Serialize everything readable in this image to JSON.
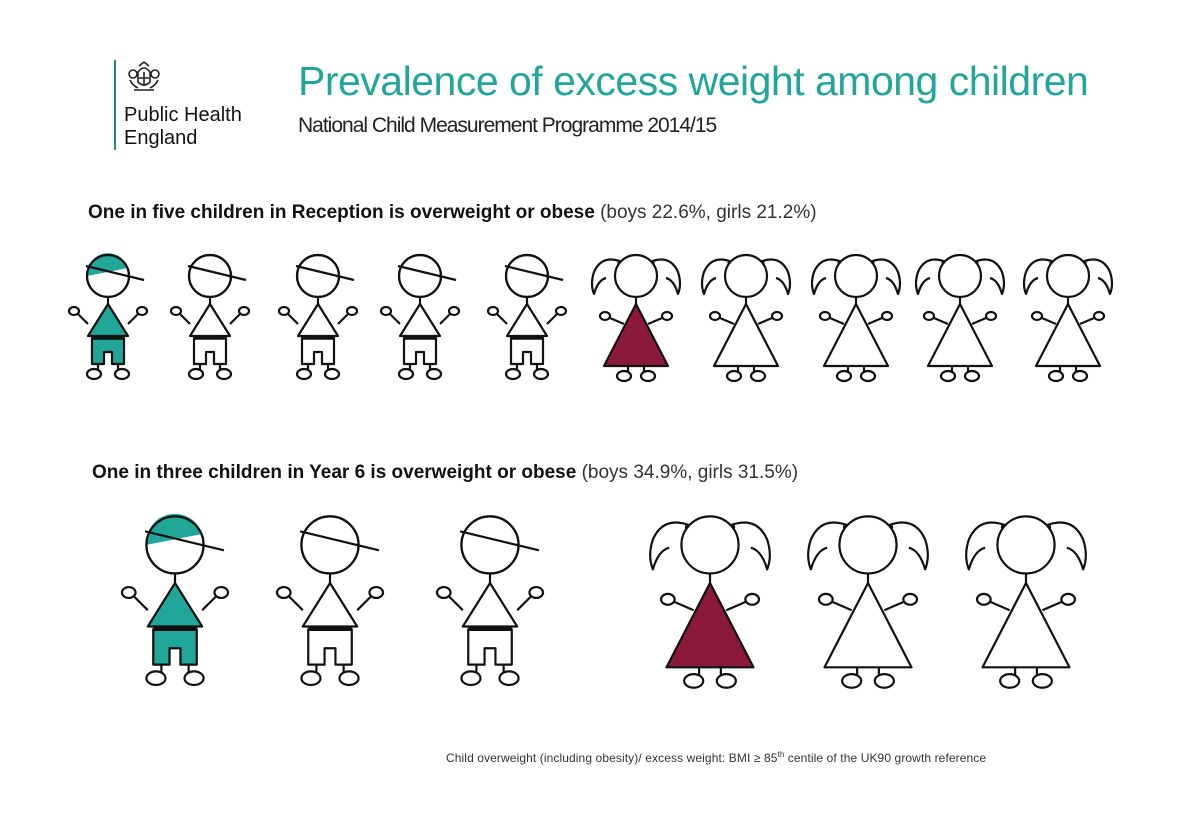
{
  "logo": {
    "org_line1": "Public Health",
    "org_line2": "England",
    "emblem_icon": "royal-crest-icon"
  },
  "header": {
    "title": "Prevalence of excess weight among children",
    "subtitle": "National Child Measurement Programme 2014/15"
  },
  "sections": [
    {
      "heading_bold": "One in five children in Reception is overweight or obese",
      "heading_detail": "(boys 22.6%, girls 21.2%)",
      "boys": {
        "count": 5,
        "highlighted": 1
      },
      "girls": {
        "count": 5,
        "highlighted": 1
      }
    },
    {
      "heading_bold": "One in three children in Year 6 is overweight or obese",
      "heading_detail": "(boys 34.9%, girls 31.5%)",
      "boys": {
        "count": 3,
        "highlighted": 1
      },
      "girls": {
        "count": 3,
        "highlighted": 1
      }
    }
  ],
  "footnote": {
    "text_before": "Child overweight (including obesity)/ excess weight: BMI ≥ 85",
    "superscript": "th",
    "text_after": " centile of the UK90 growth reference"
  },
  "colors": {
    "title": "#21a69a",
    "boy_highlight": "#21a69a",
    "girl_highlight": "#8b1a3a",
    "outline": "#111111"
  }
}
